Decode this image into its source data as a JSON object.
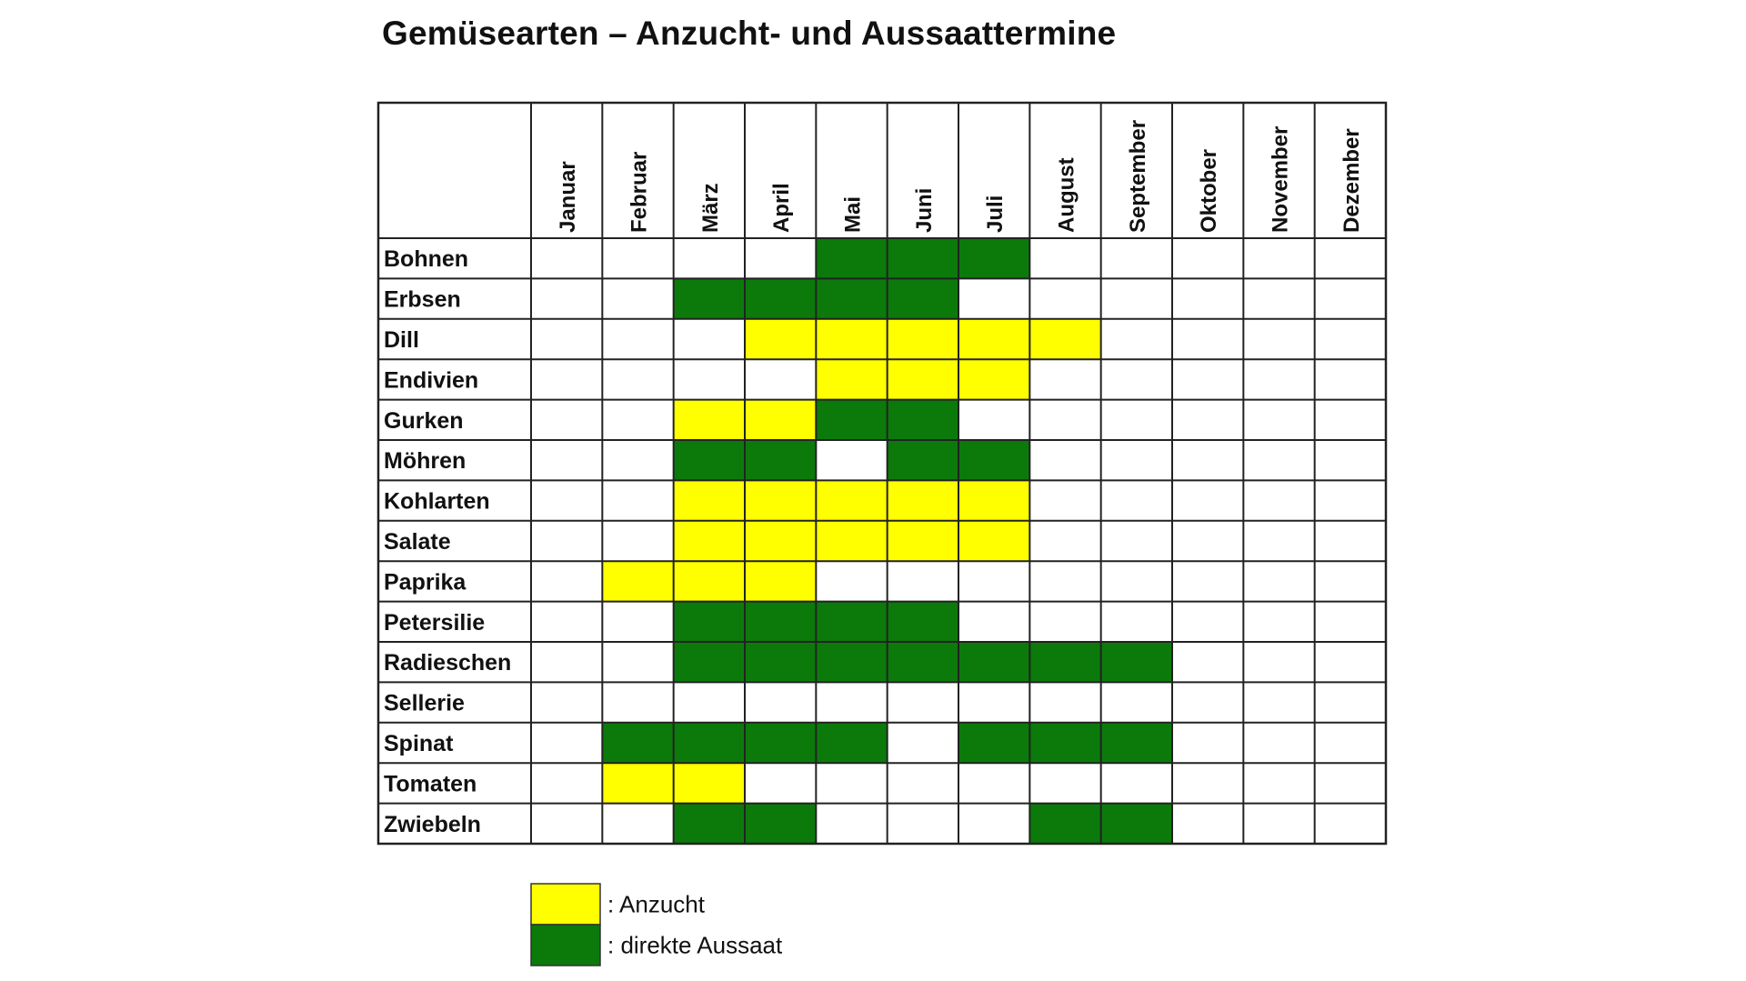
{
  "chart_data": {
    "type": "table",
    "title": "Gemüsearten – Anzucht- und Aussaattermine",
    "months": [
      "Januar",
      "Februar",
      "März",
      "April",
      "Mai",
      "Juni",
      "Juli",
      "August",
      "September",
      "Oktober",
      "November",
      "Dezember"
    ],
    "rows": [
      {
        "label": "Bohnen",
        "cells": [
          "",
          "",
          "",
          "",
          "D",
          "D",
          "D",
          "",
          "",
          "",
          "",
          ""
        ]
      },
      {
        "label": "Erbsen",
        "cells": [
          "",
          "",
          "D",
          "D",
          "D",
          "D",
          "",
          "",
          "",
          "",
          "",
          ""
        ]
      },
      {
        "label": "Dill",
        "cells": [
          "",
          "",
          "",
          "A",
          "A",
          "A",
          "A",
          "A",
          "",
          "",
          "",
          ""
        ]
      },
      {
        "label": "Endivien",
        "cells": [
          "",
          "",
          "",
          "",
          "A",
          "A",
          "A",
          "",
          "",
          "",
          "",
          ""
        ]
      },
      {
        "label": "Gurken",
        "cells": [
          "",
          "",
          "A",
          "A",
          "D",
          "D",
          "",
          "",
          "",
          "",
          "",
          ""
        ]
      },
      {
        "label": "Möhren",
        "cells": [
          "",
          "",
          "D",
          "D",
          "",
          "D",
          "D",
          "",
          "",
          "",
          "",
          ""
        ]
      },
      {
        "label": "Kohlarten",
        "cells": [
          "",
          "",
          "A",
          "A",
          "A",
          "A",
          "A",
          "",
          "",
          "",
          "",
          ""
        ]
      },
      {
        "label": "Salate",
        "cells": [
          "",
          "",
          "A",
          "A",
          "A",
          "A",
          "A",
          "",
          "",
          "",
          "",
          ""
        ]
      },
      {
        "label": "Paprika",
        "cells": [
          "",
          "A",
          "A",
          "A",
          "",
          "",
          "",
          "",
          "",
          "",
          "",
          ""
        ]
      },
      {
        "label": "Petersilie",
        "cells": [
          "",
          "",
          "D",
          "D",
          "D",
          "D",
          "",
          "",
          "",
          "",
          "",
          ""
        ]
      },
      {
        "label": "Radieschen",
        "cells": [
          "",
          "",
          "D",
          "D",
          "D",
          "D",
          "D",
          "D",
          "D",
          "",
          "",
          ""
        ]
      },
      {
        "label": "Sellerie",
        "cells": [
          "",
          "",
          "",
          "",
          "",
          "",
          "",
          "",
          "",
          "",
          "",
          ""
        ]
      },
      {
        "label": "Spinat",
        "cells": [
          "",
          "D",
          "D",
          "D",
          "D",
          "",
          "D",
          "D",
          "D",
          "",
          "",
          ""
        ]
      },
      {
        "label": "Tomaten",
        "cells": [
          "",
          "A",
          "A",
          "",
          "",
          "",
          "",
          "",
          "",
          "",
          "",
          ""
        ]
      },
      {
        "label": "Zwiebeln",
        "cells": [
          "",
          "",
          "D",
          "D",
          "",
          "",
          "",
          "D",
          "D",
          "",
          "",
          ""
        ]
      }
    ],
    "legend": [
      {
        "key": "A",
        "label": ": Anzucht",
        "color": "#ffff00"
      },
      {
        "key": "D",
        "label": ": direkte Aussaat",
        "color": "#0b7a0b"
      }
    ],
    "colors": {
      "grid": "#222222",
      "empty": "#ffffff"
    }
  }
}
